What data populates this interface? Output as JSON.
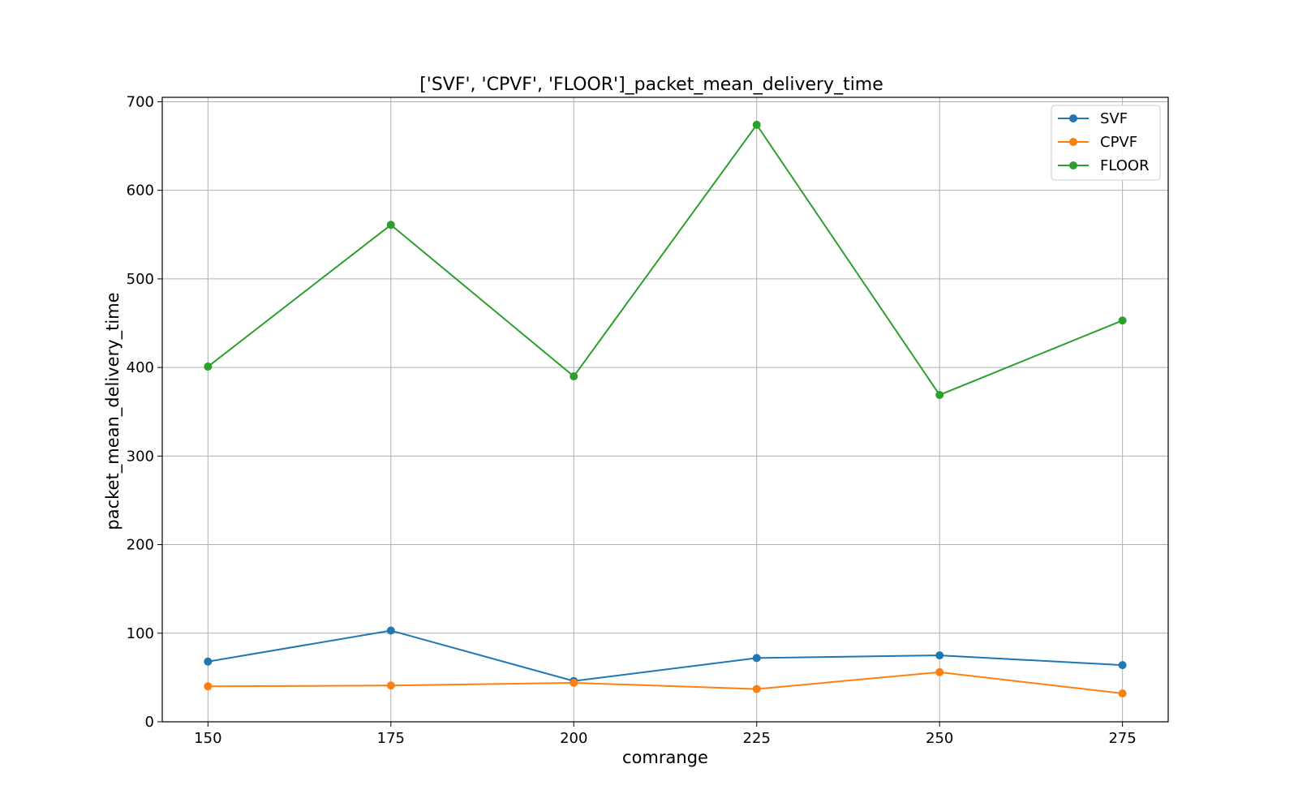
{
  "chart_data": {
    "type": "line",
    "title": "['SVF', 'CPVF', 'FLOOR']_packet_mean_delivery_time",
    "xlabel": "comrange",
    "ylabel": "packet_mean_delivery_time",
    "x": [
      150,
      175,
      200,
      225,
      250,
      275
    ],
    "xlim": [
      143.75,
      281.25
    ],
    "ylim": [
      0,
      705
    ],
    "xticks": [
      150,
      175,
      200,
      225,
      250,
      275
    ],
    "yticks": [
      0,
      100,
      200,
      300,
      400,
      500,
      600,
      700
    ],
    "grid": true,
    "legend_position": "top-right",
    "series": [
      {
        "name": "SVF",
        "color": "#1f77b4",
        "values": [
          68,
          103,
          46,
          72,
          75,
          64
        ]
      },
      {
        "name": "CPVF",
        "color": "#ff7f0e",
        "values": [
          40,
          41,
          44,
          37,
          56,
          32
        ]
      },
      {
        "name": "FLOOR",
        "color": "#2ca02c",
        "values": [
          401,
          561,
          390,
          674,
          369,
          453
        ]
      }
    ]
  }
}
